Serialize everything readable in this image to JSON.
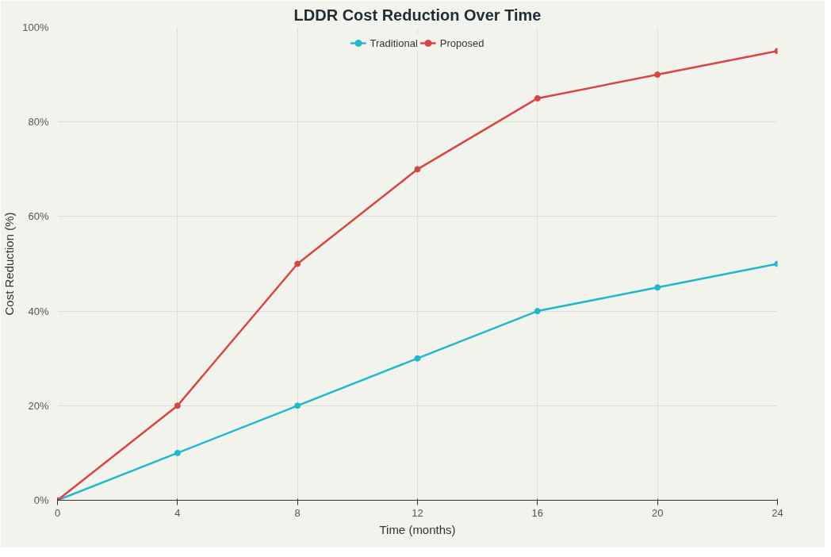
{
  "chart_data": {
    "type": "line",
    "title": "LDDR Cost Reduction Over Time",
    "xlabel": "Time (months)",
    "ylabel": "Cost Reduction (%)",
    "x": [
      0,
      4,
      8,
      12,
      16,
      20,
      24
    ],
    "series": [
      {
        "name": "Traditional",
        "color": "#1fb8cd",
        "values": [
          0,
          10,
          20,
          30,
          40,
          45,
          50
        ]
      },
      {
        "name": "Proposed",
        "color": "#d94545",
        "values": [
          0,
          20,
          50,
          70,
          85,
          90,
          95
        ]
      }
    ],
    "xlim": [
      0,
      24
    ],
    "xticks": [
      0,
      4,
      8,
      12,
      16,
      20,
      24
    ],
    "ylim": [
      0,
      100
    ],
    "yticks": [
      {
        "value": 0,
        "label": "0%"
      },
      {
        "value": 20,
        "label": "20%"
      },
      {
        "value": 40,
        "label": "40%"
      },
      {
        "value": 60,
        "label": "60%"
      },
      {
        "value": 80,
        "label": "80%"
      },
      {
        "value": 100,
        "label": "100%"
      }
    ],
    "grid": true,
    "legend": "top",
    "marker": "circle",
    "line_style": "solid"
  }
}
